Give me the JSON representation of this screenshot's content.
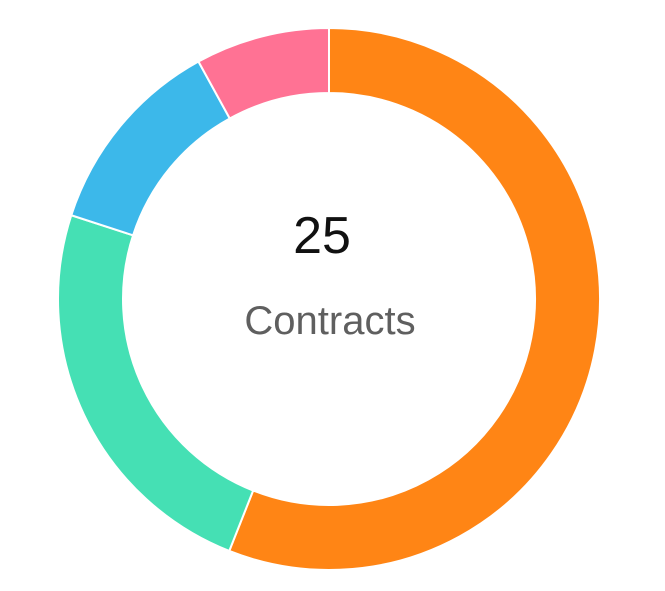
{
  "chart_data": {
    "type": "pie",
    "variant": "doughnut",
    "categories": [
      "",
      "",
      "",
      ""
    ],
    "values": [
      14,
      6,
      3,
      2
    ],
    "colors": [
      "#FF8515",
      "#45E0B4",
      "#3CB8EA",
      "#FF7294"
    ],
    "center": {
      "value": "25",
      "label": "Contracts"
    }
  }
}
